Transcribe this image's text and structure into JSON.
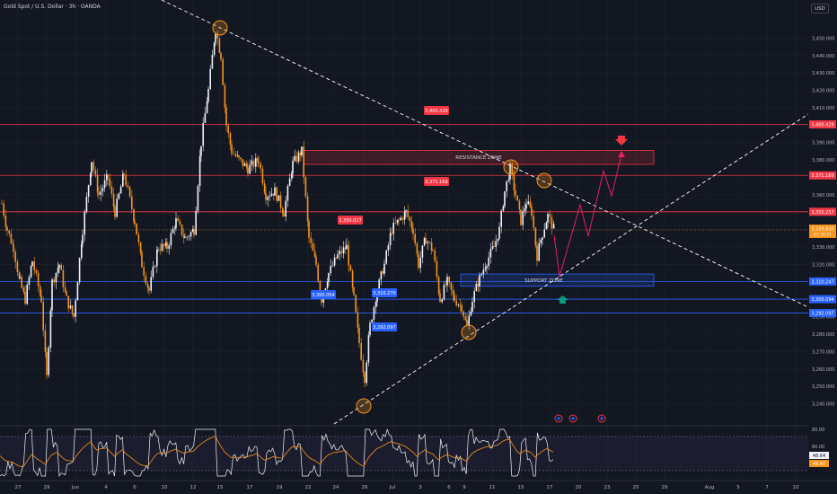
{
  "app": {
    "symbol_title": "Gold Spot / U.S. Dollar · 3h · OANDA",
    "currency": "USD",
    "colors": {
      "background": "#131722",
      "bull": "#f0f3fa",
      "bear": "#f7941d",
      "resistance": "#f23645",
      "support": "#2962ff",
      "trendline": "#ffffff",
      "projection": "#e91e63",
      "rsi": "#f0f3fa",
      "rsi_ma": "#f7941d",
      "current_price": "#f7941d"
    }
  },
  "chart_data": {
    "type": "candlestick",
    "y_axis": {
      "min": 3235,
      "max": 3460,
      "ticks": [
        3450,
        3440,
        3430,
        3420,
        3410,
        3400,
        3390,
        3380,
        3370,
        3360,
        3350,
        3340,
        3330,
        3320,
        3310,
        3300,
        3290,
        3280,
        3270,
        3260,
        3250,
        3240
      ],
      "tick_labels": [
        "3,450.000",
        "3,440.000",
        "3,430.000",
        "3,420.000",
        "3,410.000",
        "3,400.000",
        "3,390.000",
        "3,380.000",
        "3,370.000",
        "3,360.000",
        "3,350.000",
        "3,340.000",
        "3,330.000",
        "3,320.000",
        "3,310.000",
        "3,300.000",
        "3,290.000",
        "3,280.000",
        "3,270.000",
        "3,260.000",
        "3,250.000",
        "3,240.000"
      ]
    },
    "x_axis": {
      "labels": [
        "27",
        "29",
        "Jun",
        "4",
        "6",
        "10",
        "12",
        "15",
        "17",
        "19",
        "22",
        "24",
        "26",
        "Jul",
        "3",
        "6",
        "9",
        "11",
        "15",
        "17",
        "20",
        "23",
        "25",
        "29",
        "Aug",
        "5",
        "7",
        "10"
      ]
    },
    "price_levels": [
      {
        "name": "resistance-high",
        "value": 3400.429,
        "label": "3,400.429",
        "axis_label": "3,400.429",
        "color": "#f23645"
      },
      {
        "name": "resistance-mid",
        "value": 3371.169,
        "label": "3,371.169",
        "axis_label": "3,371.169",
        "color": "#f23645"
      },
      {
        "name": "resistance-low",
        "value": 3350.257,
        "axis_label": "3,350.257",
        "color": "#f23645"
      },
      {
        "name": "support-high",
        "value": 3310.247,
        "axis_label": "3,310.247",
        "color": "#2962ff"
      },
      {
        "name": "support-mid",
        "value": 3300.094,
        "axis_label": "3,300.094",
        "color": "#2962ff"
      },
      {
        "name": "support-low",
        "value": 3292.097,
        "axis_label": "3,292.097",
        "color": "#2962ff"
      }
    ],
    "chart_labels": [
      {
        "text": "3,350.027",
        "price": 3350.027,
        "color": "#f23645"
      },
      {
        "text": "3,300.054",
        "price": 3300.054,
        "color": "#2962ff"
      },
      {
        "text": "3,310.270",
        "price": 3310.27,
        "color": "#2962ff"
      },
      {
        "text": "3,292.097",
        "price": 3292.097,
        "color": "#2962ff"
      }
    ],
    "current_price": {
      "value": 3339.83,
      "label": "3,339.830",
      "countdown": "01:38:21"
    },
    "zones": [
      {
        "name": "resistance-zone",
        "label": "RESISTANCE ZONE",
        "top": 3385.5,
        "bottom": 3377.5,
        "color": "#f23645"
      },
      {
        "name": "support-zone",
        "label": "SUPPORT ZONE",
        "top": 3314.5,
        "bottom": 3307.5,
        "color": "#2962ff"
      }
    ],
    "rsi": {
      "type": "line",
      "ticks": [
        80,
        60,
        40
      ],
      "upper": 70,
      "lower": 30,
      "value": "48.64",
      "ma_value": "48.47"
    }
  }
}
